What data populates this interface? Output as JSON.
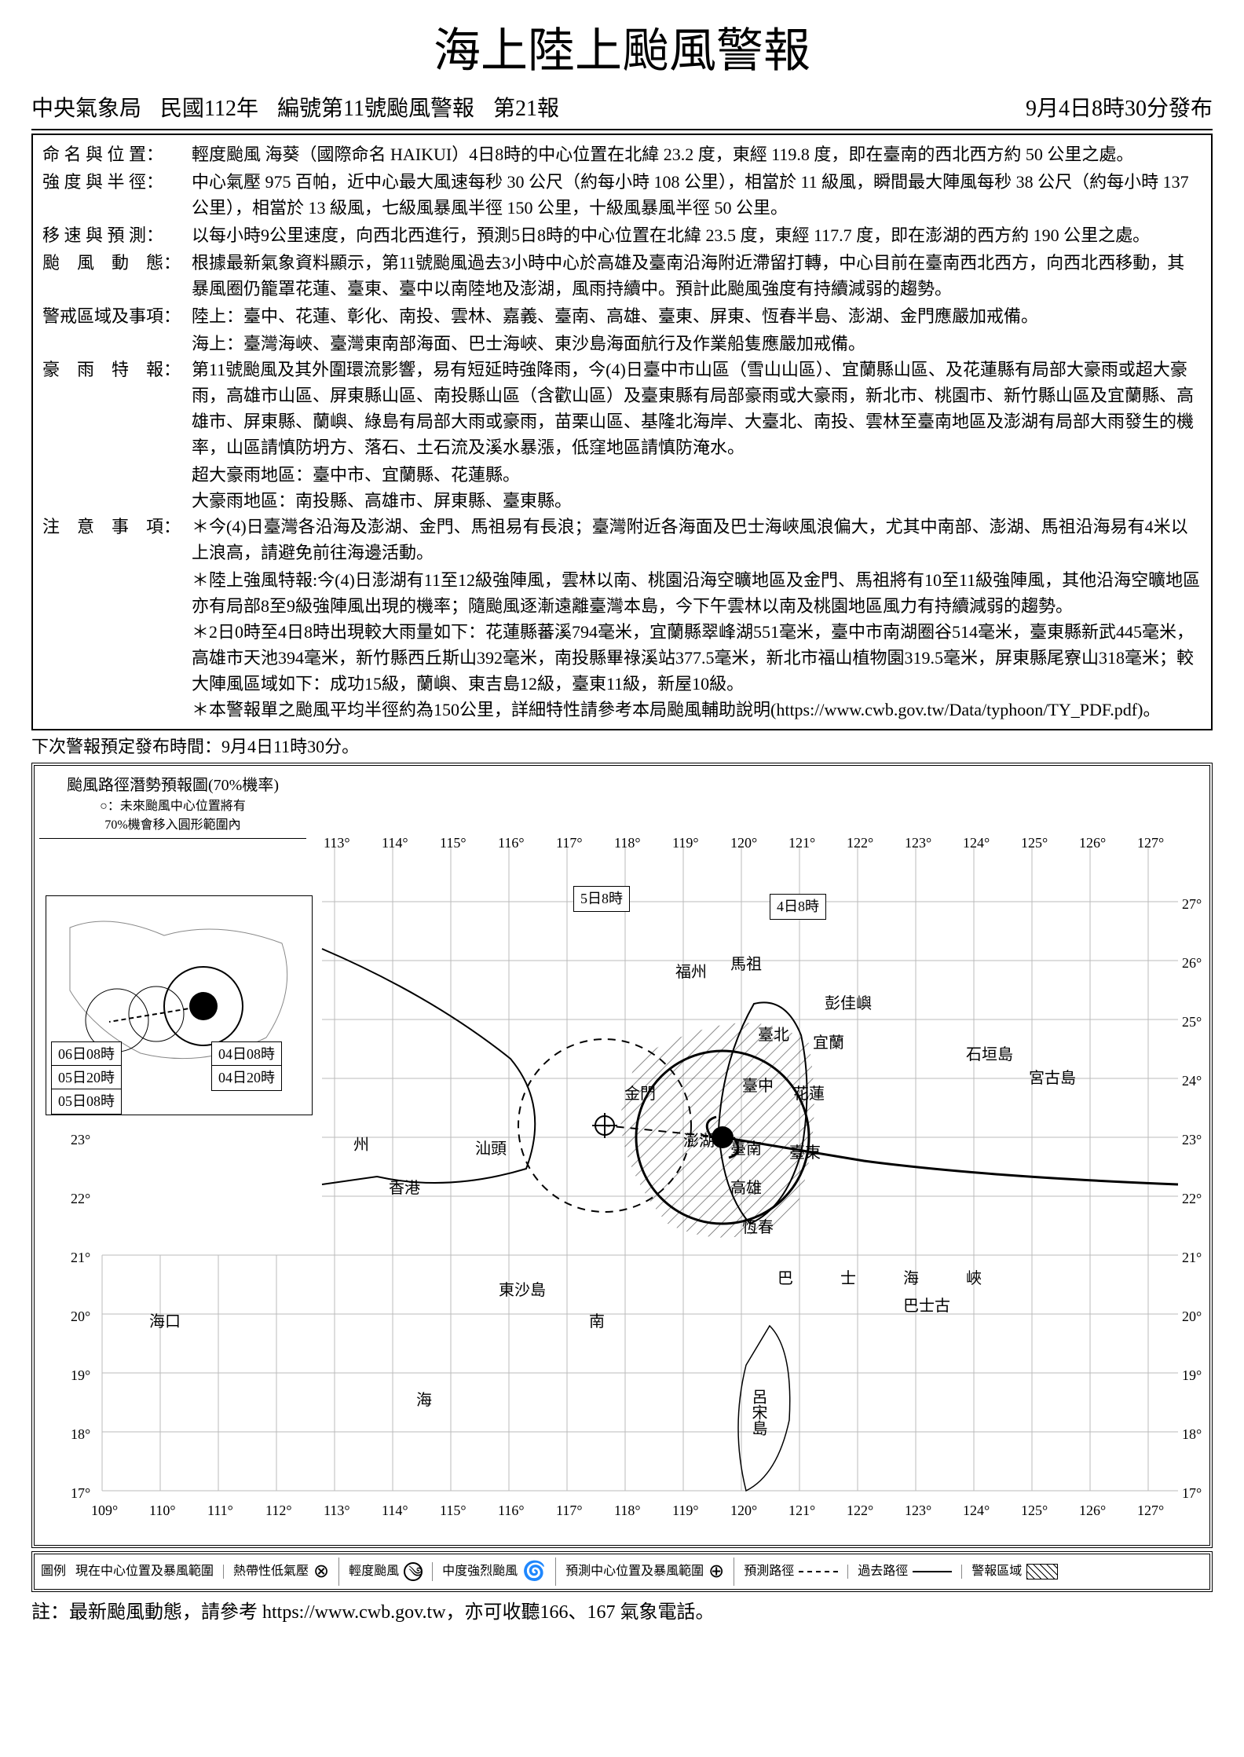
{
  "title": "海上陸上颱風警報",
  "header": {
    "agency": "中央氣象局",
    "year": "民國112年",
    "bulletin_no": "編號第11號颱風警報",
    "report_no": "第21報",
    "issued": "9月4日8時30分發布"
  },
  "sections": {
    "naming_label": "命 名 與 位 置：",
    "naming": "輕度颱風 海葵（國際命名 HAIKUI）4日8時的中心位置在北緯 23.2 度，東經 119.8 度，即在臺南的西北西方約 50 公里之處。",
    "intensity_label": "強 度 與 半 徑：",
    "intensity": "中心氣壓 975 百帕，近中心最大風速每秒 30 公尺（約每小時 108 公里），相當於 11 級風，瞬間最大陣風每秒 38 公尺（約每小時 137 公里），相當於 13 級風，七級風暴風半徑 150 公里，十級風暴風半徑 50 公里。",
    "movement_label": "移 速 與 預 測：",
    "movement": "以每小時9公里速度，向西北西進行，預測5日8時的中心位置在北緯 23.5 度，東經 117.7 度，即在澎湖的西方約 190 公里之處。",
    "status_label": "颱　風　動　態：",
    "status": "根據最新氣象資料顯示，第11號颱風過去3小時中心於高雄及臺南沿海附近滯留打轉，中心目前在臺南西北西方，向西北西移動，其暴風圈仍籠罩花蓮、臺東、臺中以南陸地及澎湖，風雨持續中。預計此颱風強度有持續減弱的趨勢。",
    "warning_area_label": "警戒區域及事項：",
    "warning_land": "陸上：臺中、花蓮、彰化、南投、雲林、嘉義、臺南、高雄、臺東、屏東、恆春半島、澎湖、金門應嚴加戒備。",
    "warning_sea": "海上：臺灣海峽、臺灣東南部海面、巴士海峽、東沙島海面航行及作業船隻應嚴加戒備。",
    "heavy_rain_label": "豪　雨　特　報：",
    "heavy_rain": "第11號颱風及其外圍環流影響，易有短延時強降雨，今(4)日臺中市山區（雪山山區）、宜蘭縣山區、及花蓮縣有局部大豪雨或超大豪雨，高雄市山區、屏東縣山區、南投縣山區（含歡山區）及臺東縣有局部豪雨或大豪雨，新北市、桃園市、新竹縣山區及宜蘭縣、高雄市、屏東縣、蘭嶼、綠島有局部大雨或豪雨，苗栗山區、基隆北海岸、大臺北、南投、雲林至臺南地區及澎湖有局部大雨發生的機率，山區請慎防坍方、落石、土石流及溪水暴漲，低窪地區請慎防淹水。",
    "heavy_rain_2": "超大豪雨地區：臺中市、宜蘭縣、花蓮縣。",
    "heavy_rain_3": "大豪雨地區：南投縣、高雄市、屏東縣、臺東縣。",
    "notes_label": "注　意　事　項：",
    "note1": "＊今(4)日臺灣各沿海及澎湖、金門、馬祖易有長浪；臺灣附近各海面及巴士海峽風浪偏大，尤其中南部、澎湖、馬祖沿海易有4米以上浪高，請避免前往海邊活動。",
    "note2": "＊陸上強風特報:今(4)日澎湖有11至12級強陣風，雲林以南、桃園沿海空曠地區及金門、馬祖將有10至11級強陣風，其他沿海空曠地區亦有局部8至9級強陣風出現的機率；隨颱風逐漸遠離臺灣本島，今下午雲林以南及桃園地區風力有持續減弱的趨勢。",
    "note3": "＊2日0時至4日8時出現較大雨量如下：花蓮縣蕃溪794毫米，宜蘭縣翠峰湖551毫米，臺中市南湖圈谷514毫米，臺東縣新武445毫米，高雄市天池394毫米，新竹縣西丘斯山392毫米，南投縣畢祿溪站377.5毫米，新北市福山植物園319.5毫米，屏東縣尾寮山318毫米；較大陣風區域如下：成功15級，蘭嶼、東吉島12級，臺東11級，新屋10級。",
    "note4": "＊本警報單之颱風平均半徑約為150公里，詳細特性請參考本局颱風輔助說明(https://www.cwb.gov.tw/Data/typhoon/TY_PDF.pdf)。"
  },
  "next_issue": "下次警報預定發布時間：9月4日11時30分。",
  "map": {
    "title_line1": "颱風路徑潛勢預報圖(70%機率)",
    "title_line2": "○：未來颱風中心位置將有",
    "title_line3": "70%機會移入圓形範圍內",
    "lon_ticks": [
      "109°",
      "110°",
      "111°",
      "112°",
      "113°",
      "114°",
      "115°",
      "116°",
      "117°",
      "118°",
      "119°",
      "120°",
      "121°",
      "122°",
      "123°",
      "124°",
      "125°",
      "126°",
      "127°"
    ],
    "lat_ticks": [
      "17°",
      "18°",
      "19°",
      "20°",
      "21°",
      "22°",
      "23°",
      "24°",
      "25°",
      "26°",
      "27°"
    ],
    "top_lon_start": "114°",
    "places": {
      "fuzhou": "福州",
      "mazu": "馬祖",
      "pengjiayu": "彭佳嶼",
      "taipei": "臺北",
      "yilan": "宜蘭",
      "ishigaki": "石垣島",
      "miyako": "宮古島",
      "taichung": "臺中",
      "hualien": "花蓮",
      "jinmen": "金門",
      "penghu": "澎湖",
      "tainan": "臺南",
      "taitung": "臺東",
      "kaohsiung": "高雄",
      "hengchun": "恆春",
      "shantou": "汕頭",
      "hongkong": "香港",
      "haikou": "海口",
      "dongsha": "東沙島",
      "nan": "南",
      "hai": "海",
      "bashi": "巴　士　海　峽",
      "bashigu": "巴士古",
      "luzon": "呂宋島",
      "zhou": "州"
    },
    "time_labels": {
      "t5_8": "5日8時",
      "t4_8": "4日8時",
      "i_06_08": "06日08時",
      "i_04_08": "04日08時",
      "i_05_20": "05日20時",
      "i_04_20": "04日20時",
      "i_05_08": "05日08時"
    }
  },
  "legend": {
    "head": "圖例",
    "current": "現在中心位置及暴風範圍",
    "tropical_low": "熱帶性低氣壓",
    "light_ty": "輕度颱風",
    "mid_strong_ty": "中度強烈颱風",
    "predicted": "預測中心位置及暴風範圍",
    "predicted_path": "預測路徑",
    "past_path": "過去路徑",
    "warning_area": "警報區域"
  },
  "footer": "註：最新颱風動態，請參考 https://www.cwb.gov.tw，亦可收聽166、167 氣象電話。"
}
